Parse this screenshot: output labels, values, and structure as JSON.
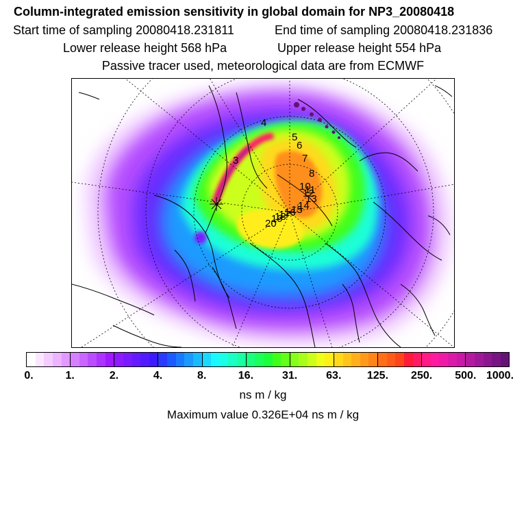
{
  "header": {
    "title": "Column-integrated emission sensitivity in global domain for NP3_20080418",
    "start_time": "Start time of sampling 20080418.231811",
    "end_time": "End time of sampling 20080418.231836",
    "lower_release": "Lower release height  568 hPa",
    "upper_release": "Upper release height  554 hPa",
    "tracer_note": "Passive tracer used, meteorological data are from ECMWF"
  },
  "map": {
    "projection": "polar-stereographic-north",
    "trajectory_markers": [
      "3",
      "4",
      "5",
      "6",
      "7",
      "8",
      "10",
      "11",
      "12",
      "13",
      "14",
      "15",
      "16",
      "17",
      "18",
      "19",
      "20"
    ]
  },
  "colorbar": {
    "tick_labels": [
      "0.",
      "1.",
      "2.",
      "4.",
      "8.",
      "16.",
      "31.",
      "63.",
      "125.",
      "250.",
      "500.",
      "1000."
    ],
    "colors": [
      "#ffffff",
      "#fbe6ff",
      "#f4ccff",
      "#ecb3ff",
      "#e399ff",
      "#d680ff",
      "#c966ff",
      "#bb4dff",
      "#ad33ff",
      "#a01aff",
      "#8e1aff",
      "#7a1aff",
      "#661aff",
      "#521aff",
      "#3e1aff",
      "#2a3aff",
      "#1a5aff",
      "#1a7aff",
      "#1a99ff",
      "#1ab9ff",
      "#1ad9ff",
      "#1af9ff",
      "#1affe6",
      "#1affc4",
      "#1affa1",
      "#1aff7e",
      "#1aff5c",
      "#1aff39",
      "#3fff1a",
      "#62ff1a",
      "#86ff1a",
      "#a9ff1a",
      "#ccff1a",
      "#efff1a",
      "#ffee1a",
      "#ffd91a",
      "#ffc41a",
      "#ffaf1a",
      "#ff991a",
      "#ff841a",
      "#ff6f1a",
      "#ff5a1a",
      "#ff441a",
      "#ff1a3a",
      "#ff1a66",
      "#ff1a88",
      "#ff1aa0",
      "#f01aa8",
      "#dc1aa8",
      "#c81aa6",
      "#b41aa0",
      "#a0189a",
      "#8c1690",
      "#781483",
      "#641274"
    ],
    "units": "ns m / kg",
    "max_value": "Maximum value  0.326E+04 ns m / kg"
  }
}
